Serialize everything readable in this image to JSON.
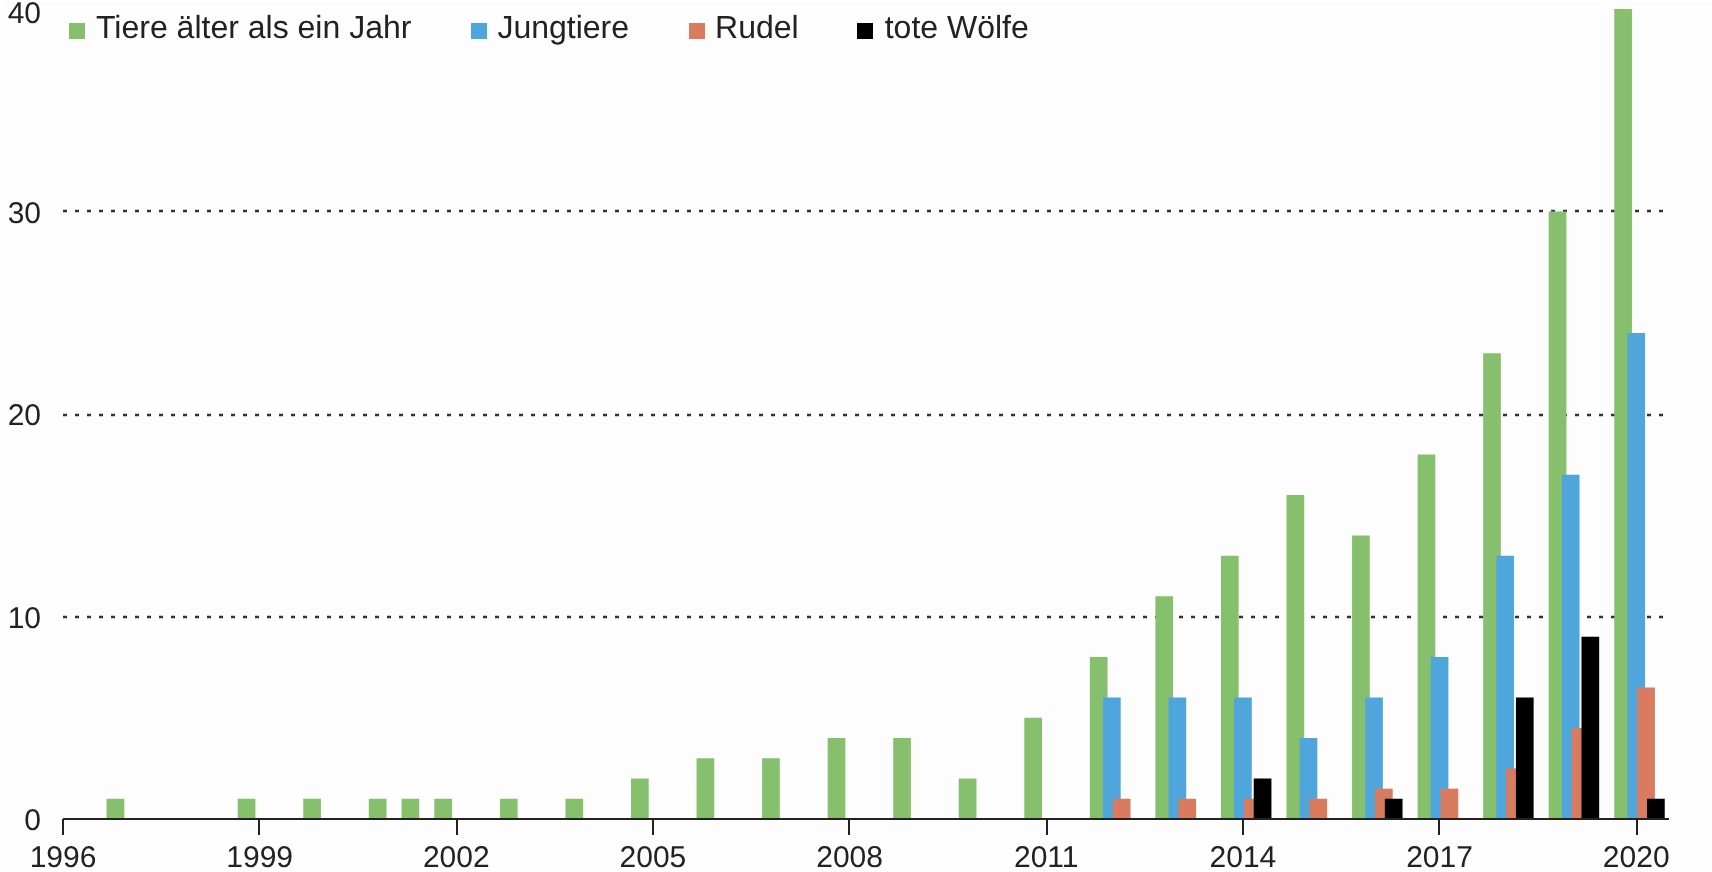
{
  "chart_data": {
    "type": "bar",
    "legend": "top left",
    "grid": "y",
    "xlim": [
      1996,
      2020.5
    ],
    "xticks": [
      1996,
      1999,
      2002,
      2005,
      2008,
      2011,
      2014,
      2017,
      2020
    ],
    "ylim": [
      0,
      40
    ],
    "yticks": [
      0,
      10,
      20,
      30,
      40
    ],
    "series": [
      {
        "name": "Tiere älter als ein Jahr",
        "color": "#86c06c",
        "x": [
          1996.8,
          1998.8,
          1999.8,
          2000.8,
          2001.3,
          2001.8,
          2002.8,
          2003.8,
          2004.8,
          2005.8,
          2006.8,
          2007.8,
          2008.8,
          2009.8,
          2010.8,
          2011.8,
          2012.8,
          2013.8,
          2014.8,
          2015.8,
          2016.8,
          2017.8,
          2018.8,
          2019.8
        ],
        "values": [
          1,
          1,
          1,
          1,
          1,
          1,
          1,
          1,
          2,
          3,
          3,
          4,
          4,
          2,
          5,
          8,
          11,
          13,
          16,
          14,
          18,
          23,
          30,
          40
        ]
      },
      {
        "name": "Jungtiere",
        "color": "#4ea6dc",
        "x": [
          2012,
          2013,
          2014,
          2015,
          2016,
          2017,
          2018,
          2019,
          2020
        ],
        "values": [
          6,
          6,
          6,
          4,
          6,
          8,
          13,
          17,
          24
        ]
      },
      {
        "name": "Rudel",
        "color": "#d97b5f",
        "x": [
          2012.15,
          2013.15,
          2014.15,
          2015.15,
          2016.15,
          2017.15,
          2018.15,
          2019.15,
          2020.15
        ],
        "values": [
          1,
          1,
          1,
          1,
          1.5,
          1.5,
          2.5,
          4.5,
          6.5
        ]
      },
      {
        "name": "tote Wölfe",
        "color": "#000000",
        "x": [
          2014.3,
          2016.3,
          2018.3,
          2019.3,
          2020.3
        ],
        "values": [
          2,
          1,
          6,
          9,
          1
        ]
      }
    ]
  }
}
